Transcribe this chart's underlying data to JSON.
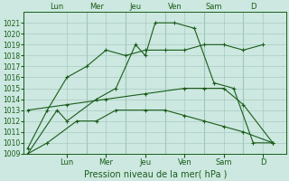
{
  "xlabel": "Pression niveau de la mer( hPa )",
  "bg_color": "#cce8e0",
  "grid_color": "#a0c4bc",
  "line_color": "#1a5c1a",
  "ylim": [
    1009,
    1022
  ],
  "yticks": [
    1009,
    1010,
    1011,
    1012,
    1013,
    1014,
    1015,
    1016,
    1017,
    1018,
    1019,
    1020,
    1021
  ],
  "xlim": [
    -0.2,
    13.2
  ],
  "day_ticks": [
    1.5,
    3.5,
    5.5,
    7.5,
    9.5,
    11.5,
    13.0
  ],
  "day_labels": [
    "Lun",
    "Mer",
    "Jeu",
    "Ven",
    "Sam",
    "D",
    ""
  ],
  "xtick_minor": [
    0,
    1,
    2,
    3,
    4,
    5,
    6,
    7,
    8,
    9,
    10,
    11,
    12,
    13
  ],
  "series": [
    {
      "x": [
        0.0,
        1.0,
        2.0,
        3.0,
        4.0,
        5.0,
        6.0,
        7.0,
        8.0,
        9.0,
        10.0,
        11.0,
        12.0
      ],
      "y": [
        1009.5,
        1013.0,
        1016.0,
        1017.0,
        1018.5,
        1018.0,
        1018.5,
        1018.5,
        1018.5,
        1019.0,
        1019.0,
        1018.5,
        1019.0
      ],
      "ls": "solid",
      "marker": "+"
    },
    {
      "x": [
        0.0,
        1.5,
        2.0,
        3.5,
        4.5,
        5.5,
        6.0,
        6.5,
        7.5,
        8.5,
        9.5,
        10.5,
        11.5,
        12.5
      ],
      "y": [
        1009.0,
        1013.0,
        1012.0,
        1014.0,
        1015.0,
        1019.0,
        1018.0,
        1021.0,
        1021.0,
        1020.5,
        1015.5,
        1015.0,
        1010.0,
        1010.0
      ],
      "ls": "solid",
      "marker": "+"
    },
    {
      "x": [
        0.0,
        2.0,
        4.0,
        6.0,
        8.0,
        9.0,
        10.0,
        11.0,
        12.5
      ],
      "y": [
        1013.0,
        1013.5,
        1014.0,
        1014.5,
        1015.0,
        1015.0,
        1015.0,
        1013.5,
        1010.0
      ],
      "ls": "solid",
      "marker": "+"
    },
    {
      "x": [
        0.0,
        1.0,
        2.5,
        3.5,
        4.5,
        6.0,
        7.0,
        8.0,
        9.0,
        10.0,
        11.0,
        12.5
      ],
      "y": [
        1009.0,
        1010.0,
        1012.0,
        1012.0,
        1013.0,
        1013.0,
        1013.0,
        1012.5,
        1012.0,
        1011.5,
        1011.0,
        1010.0
      ],
      "ls": "solid",
      "marker": "+"
    }
  ]
}
